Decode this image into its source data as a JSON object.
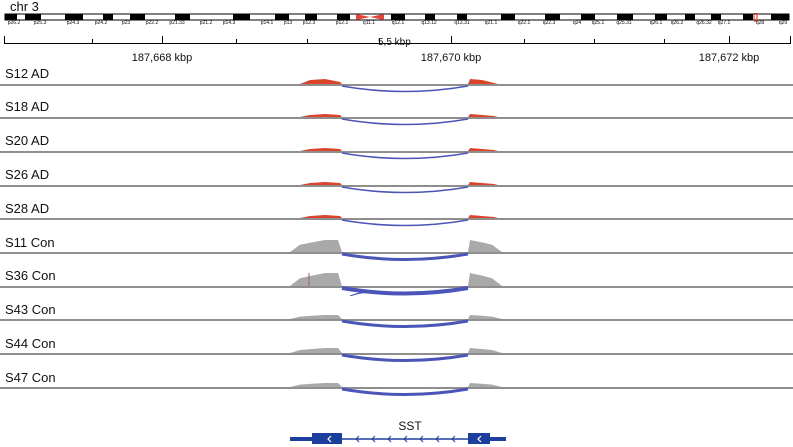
{
  "chromosome": {
    "label": "chr 3",
    "bands": [
      "p26.2",
      "p25.3",
      "p24.3",
      "p24.2",
      "p23",
      "p22.2",
      "p21.33",
      "p21.2",
      "p14.3",
      "p14.1",
      "p13",
      "p12.3",
      "p12.1",
      "q11.1",
      "q12.1",
      "q13.12",
      "q13.31",
      "q21.1",
      "q22.1",
      "q22.3",
      "q24",
      "q25.1",
      "q25.31",
      "q26.1",
      "q26.2",
      "q26.32",
      "q27.1",
      "q28",
      "q29"
    ]
  },
  "ruler": {
    "span_label": "5,5 kbp",
    "positions": [
      "187,668 kbp",
      "187,670 kbp",
      "187,672 kbp"
    ]
  },
  "tracks": [
    {
      "label": "S12 AD",
      "group": "AD"
    },
    {
      "label": "S18 AD",
      "group": "AD"
    },
    {
      "label": "S20 AD",
      "group": "AD"
    },
    {
      "label": "S26 AD",
      "group": "AD"
    },
    {
      "label": "S28 AD",
      "group": "AD"
    },
    {
      "label": "S11 Con",
      "group": "Con"
    },
    {
      "label": "S36 Con",
      "group": "Con"
    },
    {
      "label": "S43 Con",
      "group": "Con"
    },
    {
      "label": "S44 Con",
      "group": "Con"
    },
    {
      "label": "S47 Con",
      "group": "Con"
    }
  ],
  "gene": {
    "name": "SST"
  },
  "colors": {
    "ad_coverage": "#d9442b",
    "con_coverage": "#a9a9a9",
    "splice_junction": "#4b55b8",
    "gene_model": "#1c3f9e",
    "centromere": "#e0463a",
    "baseline": "#8e8e8e"
  }
}
